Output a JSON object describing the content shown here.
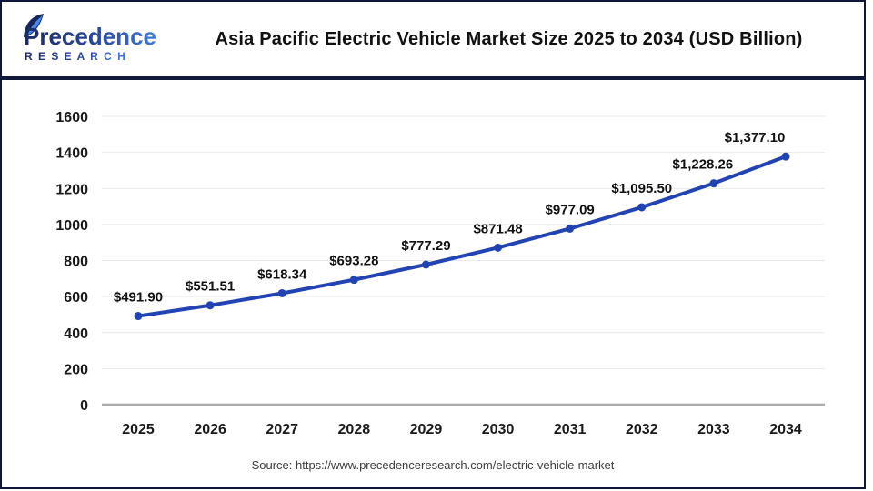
{
  "header": {
    "brand_name": "Precedence",
    "brand_sub": "R E S E A R C H",
    "title": "Asia Pacific Electric Vehicle Market Size 2025 to 2034 (USD Billion)"
  },
  "chart_data": {
    "type": "line",
    "title": "Asia Pacific Electric Vehicle Market Size 2025 to 2034 (USD Billion)",
    "categories": [
      "2025",
      "2026",
      "2027",
      "2028",
      "2029",
      "2030",
      "2031",
      "2032",
      "2033",
      "2034"
    ],
    "series": [
      {
        "name": "Asia Pacific Electric Vehicle Market Size (USD Billion)",
        "values": [
          491.9,
          551.51,
          618.34,
          693.28,
          777.29,
          871.48,
          977.09,
          1095.5,
          1228.26,
          1377.1
        ]
      }
    ],
    "value_labels": [
      "$491.90",
      "$551.51",
      "$618.34",
      "$693.28",
      "$777.29",
      "$871.48",
      "$977.09",
      "$1,095.50",
      "$1,228.26",
      "$1,377.10"
    ],
    "xlabel": "",
    "ylabel": "",
    "ylim": [
      0,
      1600
    ],
    "ytick_step": 200,
    "grid": true,
    "legend_position": "none",
    "line_color": "#2244b2",
    "marker_color": "#2244b2",
    "grid_color": "#e9e9e9",
    "axis_color": "#ababab",
    "label_color": "#111111"
  },
  "footer": {
    "source": "Source: https://www.precedenceresearch.com/electric-vehicle-market"
  }
}
